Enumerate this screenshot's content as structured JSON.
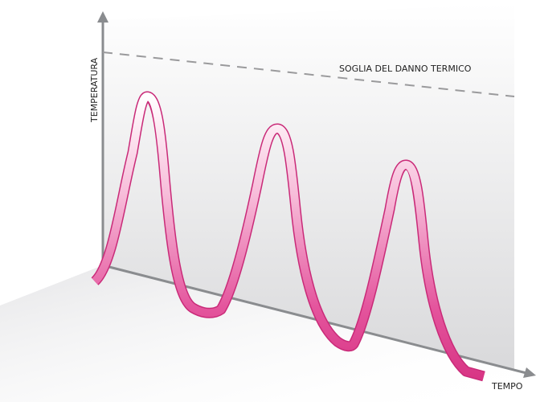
{
  "axes": {
    "y_label": "TEMPERATURA",
    "x_label": "TEMPO"
  },
  "threshold": {
    "label": "SOGLIA DEL DANNO TERMICO"
  }
}
